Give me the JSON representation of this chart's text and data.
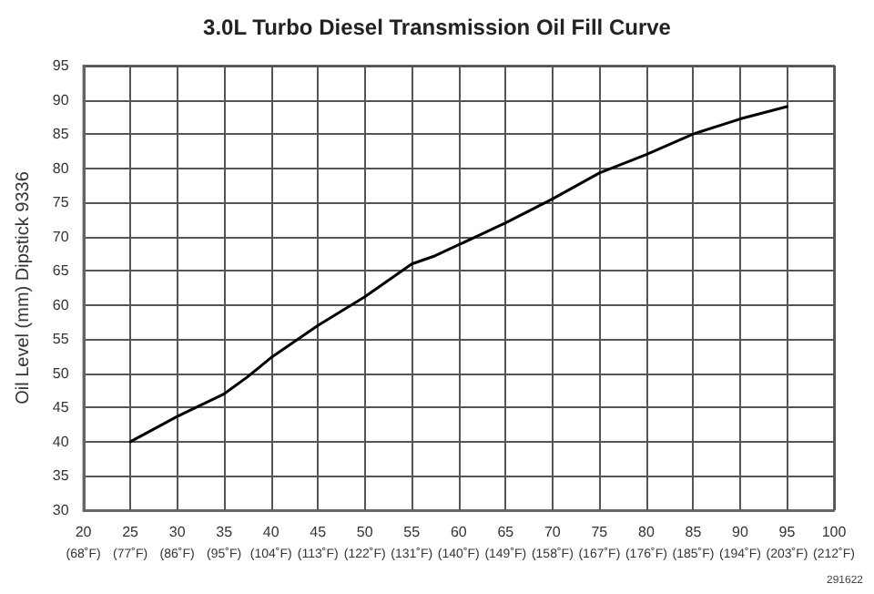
{
  "chart_data": {
    "type": "line",
    "title": "3.0L Turbo Diesel Transmission Oil Fill Curve",
    "ylabel": "Oil Level (mm) Dipstick 9336",
    "annotations": [
      "291622"
    ],
    "x": [
      25,
      30,
      35,
      37.5,
      40,
      45,
      50,
      55,
      57.5,
      60,
      65,
      70,
      75,
      80,
      85,
      90,
      95
    ],
    "series": [
      {
        "color": "#000000",
        "values": [
          40,
          43.7,
          47,
          49.5,
          52.3,
          57,
          61.2,
          66,
          67.2,
          68.8,
          72,
          75.5,
          79.3,
          82,
          85,
          87.2,
          89
        ]
      }
    ],
    "xlim": [
      20,
      100
    ],
    "xticks": [
      20,
      25,
      30,
      35,
      40,
      45,
      50,
      55,
      60,
      65,
      70,
      75,
      80,
      85,
      90,
      95,
      100
    ],
    "x2lim": [
      68,
      212
    ],
    "x2ticks": [
      {
        "value": 68,
        "label": "(68˚F)"
      },
      {
        "value": 77,
        "label": "(77˚F)"
      },
      {
        "value": 86,
        "label": "(86˚F)"
      },
      {
        "value": 95,
        "label": "(95˚F)"
      },
      {
        "value": 104,
        "label": "(104˚F)"
      },
      {
        "value": 113,
        "label": "(113˚F)"
      },
      {
        "value": 122,
        "label": "(122˚F)"
      },
      {
        "value": 131,
        "label": "(131˚F)"
      },
      {
        "value": 140,
        "label": "(140˚F)"
      },
      {
        "value": 149,
        "label": "(149˚F)"
      },
      {
        "value": 158,
        "label": "(158˚F)"
      },
      {
        "value": 167,
        "label": "(167˚F)"
      },
      {
        "value": 176,
        "label": "(176˚F)"
      },
      {
        "value": 185,
        "label": "(185˚F)"
      },
      {
        "value": 194,
        "label": "(194˚F)"
      },
      {
        "value": 203,
        "label": "(203˚F)"
      },
      {
        "value": 212,
        "label": "(212˚F)"
      }
    ],
    "ylim": [
      30,
      95
    ],
    "yticks": [
      30,
      35,
      40,
      45,
      50,
      55,
      60,
      65,
      70,
      75,
      80,
      85,
      90,
      95
    ],
    "grid": true,
    "marker": "none",
    "line_style": "solid"
  }
}
